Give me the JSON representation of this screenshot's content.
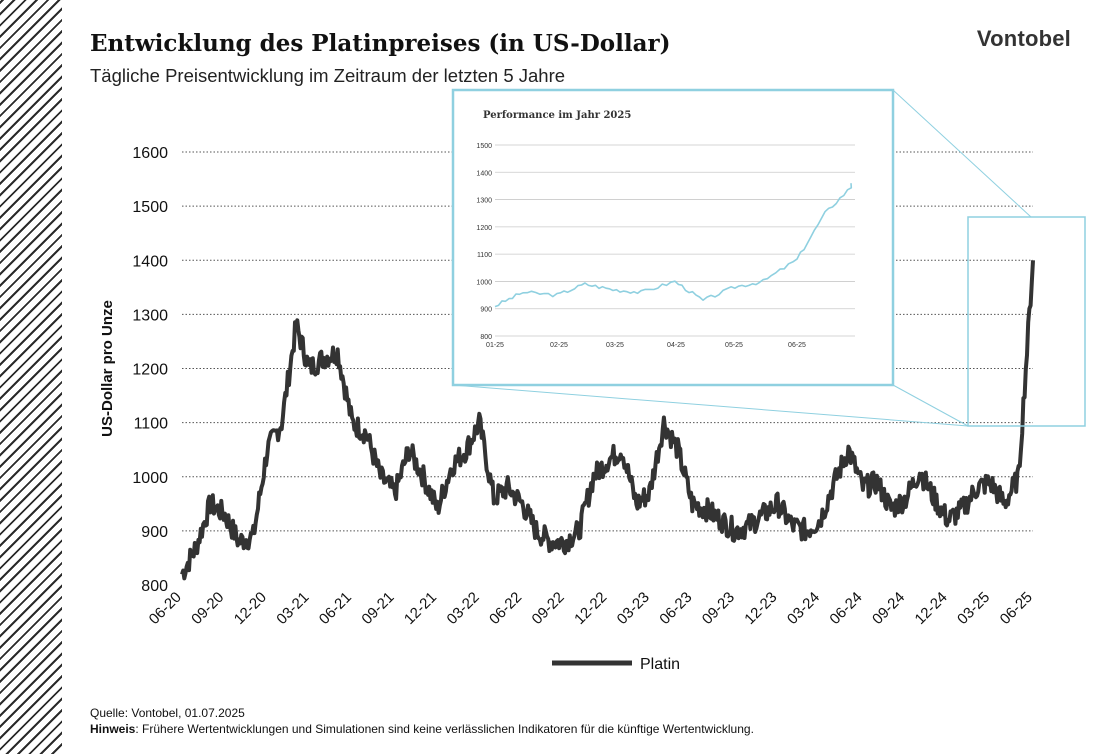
{
  "header": {
    "title": "Entwicklung des Platinpreises (in US-Dollar)",
    "subtitle": "Tägliche Preisentwicklung im Zeitraum der letzten 5 Jahre",
    "logo": "Vontobel"
  },
  "footer": {
    "source": "Quelle: Vontobel, 01.07.2025",
    "note_label": "Hinweis",
    "note_text": ": Frühere Wertentwicklungen und Simulationen sind keine verlässlichen Indikatoren für die künftige Wertentwicklung."
  },
  "colors": {
    "main_line": "#333333",
    "inset_line": "#8fd0e0",
    "inset_frame": "#8fd0e0",
    "grid": "#555555",
    "hatch": "#2b2b2b"
  },
  "chart_data": [
    {
      "type": "line",
      "ylabel": "US-Dollar pro Unze",
      "xlabel": "",
      "ylim": [
        800,
        1600
      ],
      "yticks": [
        800,
        900,
        1000,
        1100,
        1200,
        1300,
        1400,
        1500,
        1600
      ],
      "xticks": [
        "06-20",
        "09-20",
        "12-20",
        "03-21",
        "06-21",
        "09-21",
        "12-21",
        "03-22",
        "06-22",
        "09-22",
        "12-22",
        "03-23",
        "06-23",
        "09-23",
        "12-23",
        "03-24",
        "06-24",
        "09-24",
        "12-24",
        "03-25",
        "06-25"
      ],
      "grid": "horizontal dotted",
      "legend": "bottom-center",
      "series": [
        {
          "name": "Platin",
          "x": [
            "2020-06",
            "2020-07",
            "2020-08",
            "2020-09",
            "2020-10",
            "2020-11",
            "2020-12",
            "2021-01",
            "2021-02",
            "2021-03",
            "2021-04",
            "2021-05",
            "2021-06",
            "2021-07",
            "2021-08",
            "2021-09",
            "2021-10",
            "2021-11",
            "2021-12",
            "2022-01",
            "2022-02",
            "2022-03",
            "2022-04",
            "2022-05",
            "2022-06",
            "2022-07",
            "2022-08",
            "2022-09",
            "2022-10",
            "2022-11",
            "2022-12",
            "2023-01",
            "2023-02",
            "2023-03",
            "2023-04",
            "2023-05",
            "2023-06",
            "2023-07",
            "2023-08",
            "2023-09",
            "2023-10",
            "2023-11",
            "2023-12",
            "2024-01",
            "2024-02",
            "2024-03",
            "2024-04",
            "2024-05",
            "2024-06",
            "2024-07",
            "2024-08",
            "2024-09",
            "2024-10",
            "2024-11",
            "2024-12",
            "2025-01",
            "2025-02",
            "2025-03",
            "2025-04",
            "2025-05",
            "2025-06"
          ],
          "values": [
            820,
            870,
            950,
            930,
            880,
            890,
            1050,
            1100,
            1280,
            1200,
            1220,
            1230,
            1100,
            1080,
            1000,
            970,
            1050,
            1000,
            940,
            1020,
            1050,
            1100,
            960,
            980,
            950,
            900,
            880,
            880,
            900,
            1000,
            1030,
            1050,
            950,
            970,
            1100,
            1050,
            950,
            940,
            920,
            900,
            910,
            930,
            950,
            910,
            900,
            920,
            990,
            1050,
            980,
            990,
            940,
            960,
            1010,
            960,
            920,
            940,
            980,
            990,
            950,
            1000,
            1400
          ]
        }
      ]
    },
    {
      "type": "line",
      "title": "Performance im Jahr 2025",
      "ylim": [
        800,
        1500
      ],
      "yticks": [
        800,
        900,
        1000,
        1100,
        1200,
        1300,
        1400,
        1500
      ],
      "xticks": [
        "01-25",
        "02-25",
        "03-25",
        "04-25",
        "05-25",
        "06-25"
      ],
      "grid": "horizontal",
      "series": [
        {
          "name": "",
          "x": [
            "2025-01-01",
            "2025-01-15",
            "2025-02-01",
            "2025-02-15",
            "2025-03-01",
            "2025-03-15",
            "2025-04-01",
            "2025-04-15",
            "2025-05-01",
            "2025-05-15",
            "2025-06-01",
            "2025-06-15",
            "2025-06-30"
          ],
          "values": [
            910,
            960,
            950,
            990,
            970,
            960,
            1000,
            930,
            980,
            1000,
            1080,
            1250,
            1360
          ]
        }
      ]
    }
  ]
}
